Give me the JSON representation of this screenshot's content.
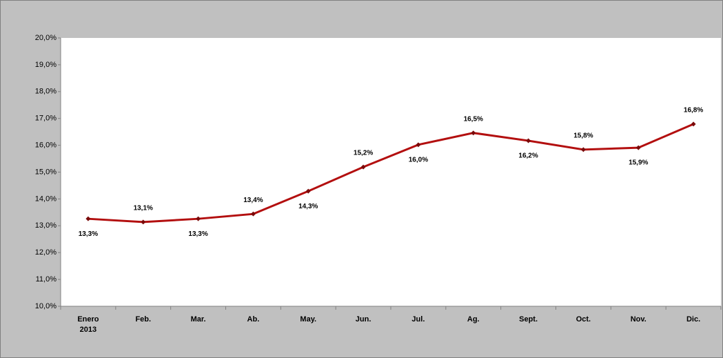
{
  "chart_data": {
    "type": "line",
    "categories": [
      "Enero 2013",
      "Feb.",
      "Mar.",
      "Ab.",
      "May.",
      "Jun.",
      "Jul.",
      "Ag.",
      "Sept.",
      "Oct.",
      "Nov.",
      "Dic."
    ],
    "series": [
      {
        "color": "#b30f0f",
        "values": [
          13.26,
          13.14,
          13.26,
          13.44,
          14.29,
          15.19,
          16.02,
          16.46,
          16.17,
          15.84,
          15.91,
          16.79
        ],
        "value_labels": [
          "13,3%",
          "13,1%",
          "13,3%",
          "13,4%",
          "14,3%",
          "15,2%",
          "16,0%",
          "16,5%",
          "16,2%",
          "15,8%",
          "15,9%",
          "16,8%"
        ]
      }
    ],
    "ylim": [
      10,
      20
    ],
    "yticks": [
      {
        "value": 10,
        "label": "10,0%"
      },
      {
        "value": 11,
        "label": "11,0%"
      },
      {
        "value": 12,
        "label": "12,0%"
      },
      {
        "value": 13,
        "label": "13,0%"
      },
      {
        "value": 14,
        "label": "14,0%"
      },
      {
        "value": 15,
        "label": "15,0%"
      },
      {
        "value": 16,
        "label": "16,0%"
      },
      {
        "value": 17,
        "label": "17,0%"
      },
      {
        "value": 18,
        "label": "18,0%"
      },
      {
        "value": 19,
        "label": "19,0%"
      },
      {
        "value": 20,
        "label": "20,0%"
      }
    ]
  }
}
